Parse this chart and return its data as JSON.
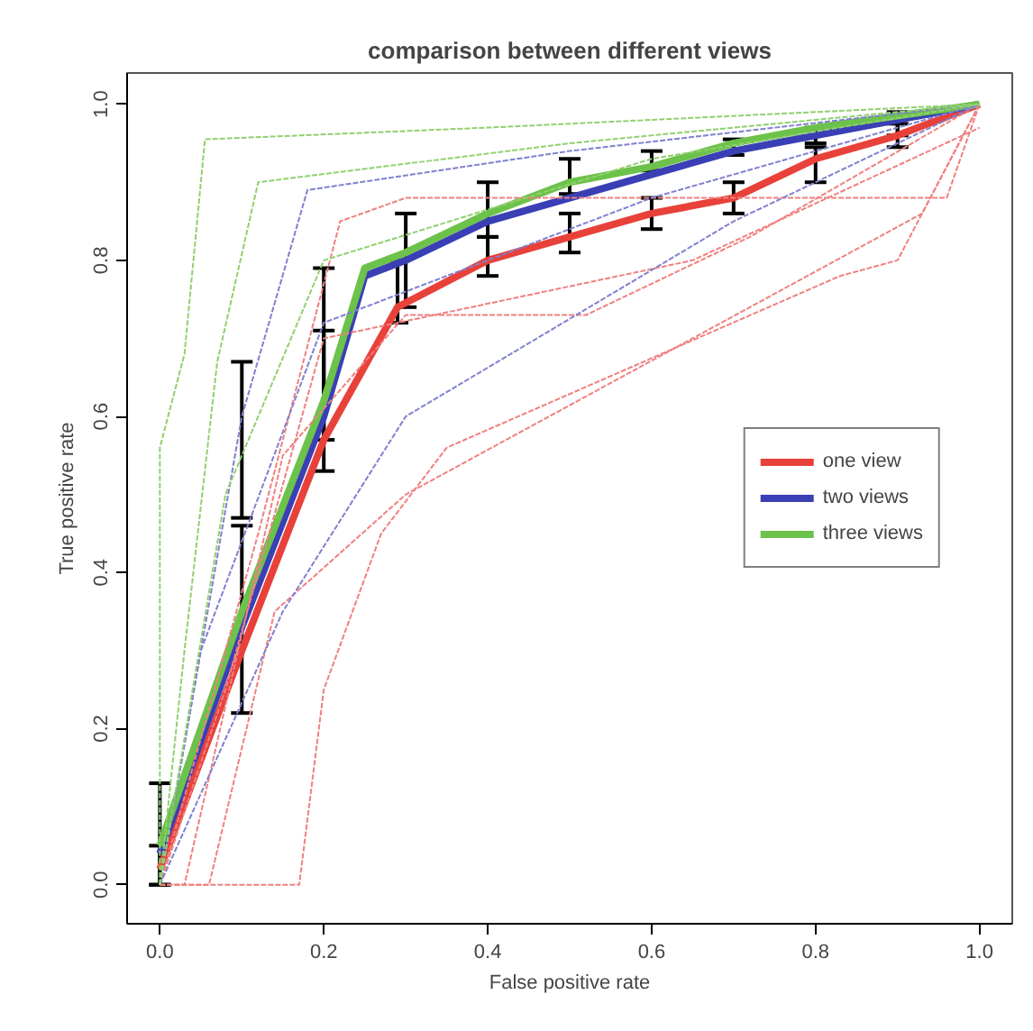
{
  "chart_data": {
    "type": "line",
    "title": "comparison between different views",
    "xlabel": "False positive rate",
    "ylabel": "True positive rate",
    "xlim": [
      -0.04,
      1.04
    ],
    "ylim": [
      -0.05,
      1.04
    ],
    "xticks": [
      {
        "value": 0,
        "label": "0.0"
      },
      0.2,
      0.4,
      0.6,
      0.8,
      {
        "value": 1,
        "label": "1.0"
      }
    ],
    "yticks": [
      {
        "value": 0,
        "label": "0.0"
      },
      0.2,
      0.4,
      0.6,
      0.8,
      {
        "value": 1,
        "label": "1.0"
      }
    ],
    "grid": false,
    "legend": "right",
    "marker": "none",
    "series": [
      {
        "color": "#f08080",
        "line_style": "dashed",
        "x": [
          0,
          0.17,
          0.2,
          0.27,
          0.35,
          0.83,
          0.9,
          1
        ],
        "values": [
          0,
          0,
          0.25,
          0.45,
          0.56,
          0.78,
          0.8,
          1
        ]
      },
      {
        "color": "#f08080",
        "line_style": "dashed",
        "x": [
          0,
          0.06,
          0.14,
          0.3,
          0.93,
          1
        ],
        "values": [
          0,
          0,
          0.35,
          0.5,
          0.86,
          1
        ]
      },
      {
        "color": "#f08080",
        "line_style": "dashed",
        "x": [
          0,
          0.03,
          0.15,
          0.3,
          0.52,
          0.72,
          1
        ],
        "values": [
          0,
          0,
          0.55,
          0.73,
          0.73,
          0.83,
          1
        ]
      },
      {
        "color": "#f08080",
        "line_style": "dashed",
        "x": [
          0,
          0.12,
          0.22,
          0.3,
          0.96,
          1
        ],
        "values": [
          0,
          0.45,
          0.85,
          0.88,
          0.88,
          1
        ]
      },
      {
        "color": "#f08080",
        "line_style": "dashed",
        "x": [
          0,
          0.08,
          0.2,
          0.65,
          1
        ],
        "values": [
          0,
          0.25,
          0.7,
          0.8,
          0.97
        ]
      },
      {
        "color": "#8080d0",
        "line_style": "dashed",
        "x": [
          0,
          0.1,
          0.18,
          0.5,
          1
        ],
        "values": [
          0,
          0.6,
          0.89,
          0.94,
          1
        ]
      },
      {
        "color": "#8080d0",
        "line_style": "dashed",
        "x": [
          0,
          0.05,
          0.2,
          0.6,
          1
        ],
        "values": [
          0,
          0.3,
          0.72,
          0.88,
          1
        ]
      },
      {
        "color": "#8080d0",
        "line_style": "dashed",
        "x": [
          0,
          0.15,
          0.3,
          0.7,
          1
        ],
        "values": [
          0,
          0.35,
          0.6,
          0.85,
          1
        ]
      },
      {
        "color": "#90d070",
        "line_style": "dashed",
        "x": [
          0,
          0.0,
          0.03,
          0.055,
          0.4,
          1
        ],
        "values": [
          0,
          0.56,
          0.68,
          0.955,
          0.97,
          1
        ]
      },
      {
        "color": "#90d070",
        "line_style": "dashed",
        "x": [
          0,
          0.03,
          0.07,
          0.12,
          0.5,
          1
        ],
        "values": [
          0,
          0.3,
          0.67,
          0.9,
          0.95,
          1
        ]
      },
      {
        "color": "#90d070",
        "line_style": "dashed",
        "x": [
          0,
          0.08,
          0.2,
          0.6,
          1
        ],
        "values": [
          0,
          0.5,
          0.8,
          0.93,
          1
        ]
      },
      {
        "name": "one view",
        "color": "#e8413a",
        "line_style": "solid",
        "x": [
          0,
          0.1,
          0.2,
          0.29,
          0.4,
          0.5,
          0.6,
          0.7,
          0.8,
          0.9,
          1
        ],
        "values": [
          0.02,
          0.3,
          0.57,
          0.74,
          0.8,
          0.83,
          0.86,
          0.88,
          0.93,
          0.96,
          1
        ],
        "errors": [
          [
            0.0,
            0.05
          ],
          [
            0.22,
            0.46
          ],
          [
            0.53,
            0.71
          ],
          [
            0.72,
            0.8
          ],
          [
            0.78,
            0.83
          ],
          [
            0.81,
            0.86
          ],
          [
            0.84,
            0.88
          ],
          [
            0.86,
            0.9
          ],
          [
            0.9,
            0.945
          ],
          [
            0.945,
            0.975
          ],
          null
        ]
      },
      {
        "name": "two views",
        "color": "#3a3fb5",
        "line_style": "solid",
        "x": [
          0,
          0.1,
          0.2,
          0.25,
          0.3,
          0.4,
          0.5,
          0.6,
          0.7,
          0.8,
          0.9,
          1
        ],
        "values": [
          0.04,
          0.33,
          0.6,
          0.78,
          0.8,
          0.85,
          0.88,
          0.91,
          0.94,
          0.96,
          0.98,
          1
        ]
      },
      {
        "name": "three views",
        "color": "#6cc24a",
        "line_style": "solid",
        "x": [
          0,
          0.1,
          0.2,
          0.25,
          0.3,
          0.4,
          0.5,
          0.6,
          0.7,
          0.8,
          0.9,
          1
        ],
        "values": [
          0.05,
          0.35,
          0.62,
          0.79,
          0.81,
          0.86,
          0.9,
          0.92,
          0.95,
          0.97,
          0.985,
          1
        ],
        "errors": [
          [
            0.0,
            0.13
          ],
          [
            0.47,
            0.67
          ],
          [
            0.57,
            0.79
          ],
          null,
          [
            0.74,
            0.86
          ],
          [
            0.83,
            0.9
          ],
          [
            0.885,
            0.93
          ],
          [
            0.915,
            0.94
          ],
          [
            0.935,
            0.955
          ],
          [
            0.95,
            0.97
          ],
          [
            0.96,
            0.99
          ],
          null
        ]
      }
    ]
  }
}
